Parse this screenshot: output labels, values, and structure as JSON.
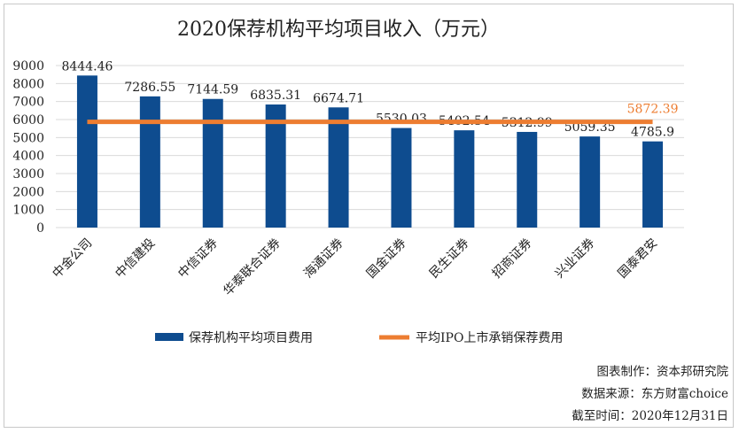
{
  "chart_data": {
    "type": "bar",
    "title": "2020保荐机构平均项目收入（万元）",
    "categories": [
      "中金公司",
      "中信建投",
      "中信证券",
      "华泰联合证券",
      "海通证券",
      "国金证券",
      "民生证券",
      "招商证券",
      "兴业证券",
      "国泰君安"
    ],
    "series": [
      {
        "name": "保荐机构平均项目费用",
        "type": "bar",
        "color": "#0e4c8f",
        "values": [
          8444.46,
          7286.55,
          7144.59,
          6835.31,
          6674.71,
          5530.03,
          5402.54,
          5312.99,
          5059.35,
          4785.9
        ],
        "labels": [
          "8444.46",
          "7286.55",
          "7144.59",
          "6835.31",
          "6674.71",
          "5530.03",
          "5402.54",
          "5312.99",
          "5059.35",
          "4785.9"
        ]
      },
      {
        "name": "平均IPO上市承销保荐费用",
        "type": "line",
        "color": "#ed7d31",
        "value": 5872.39,
        "label": "5872.39"
      }
    ],
    "ylim": [
      0,
      9000
    ],
    "yticks": [
      "0",
      "1000",
      "2000",
      "3000",
      "4000",
      "5000",
      "6000",
      "7000",
      "8000",
      "9000"
    ],
    "grid": true,
    "legend_position": "bottom"
  },
  "credits": {
    "maker": "图表制作：资本邦研究院",
    "source": "数据来源：东方财富choice",
    "date": "截至时间：2020年12月31日"
  }
}
